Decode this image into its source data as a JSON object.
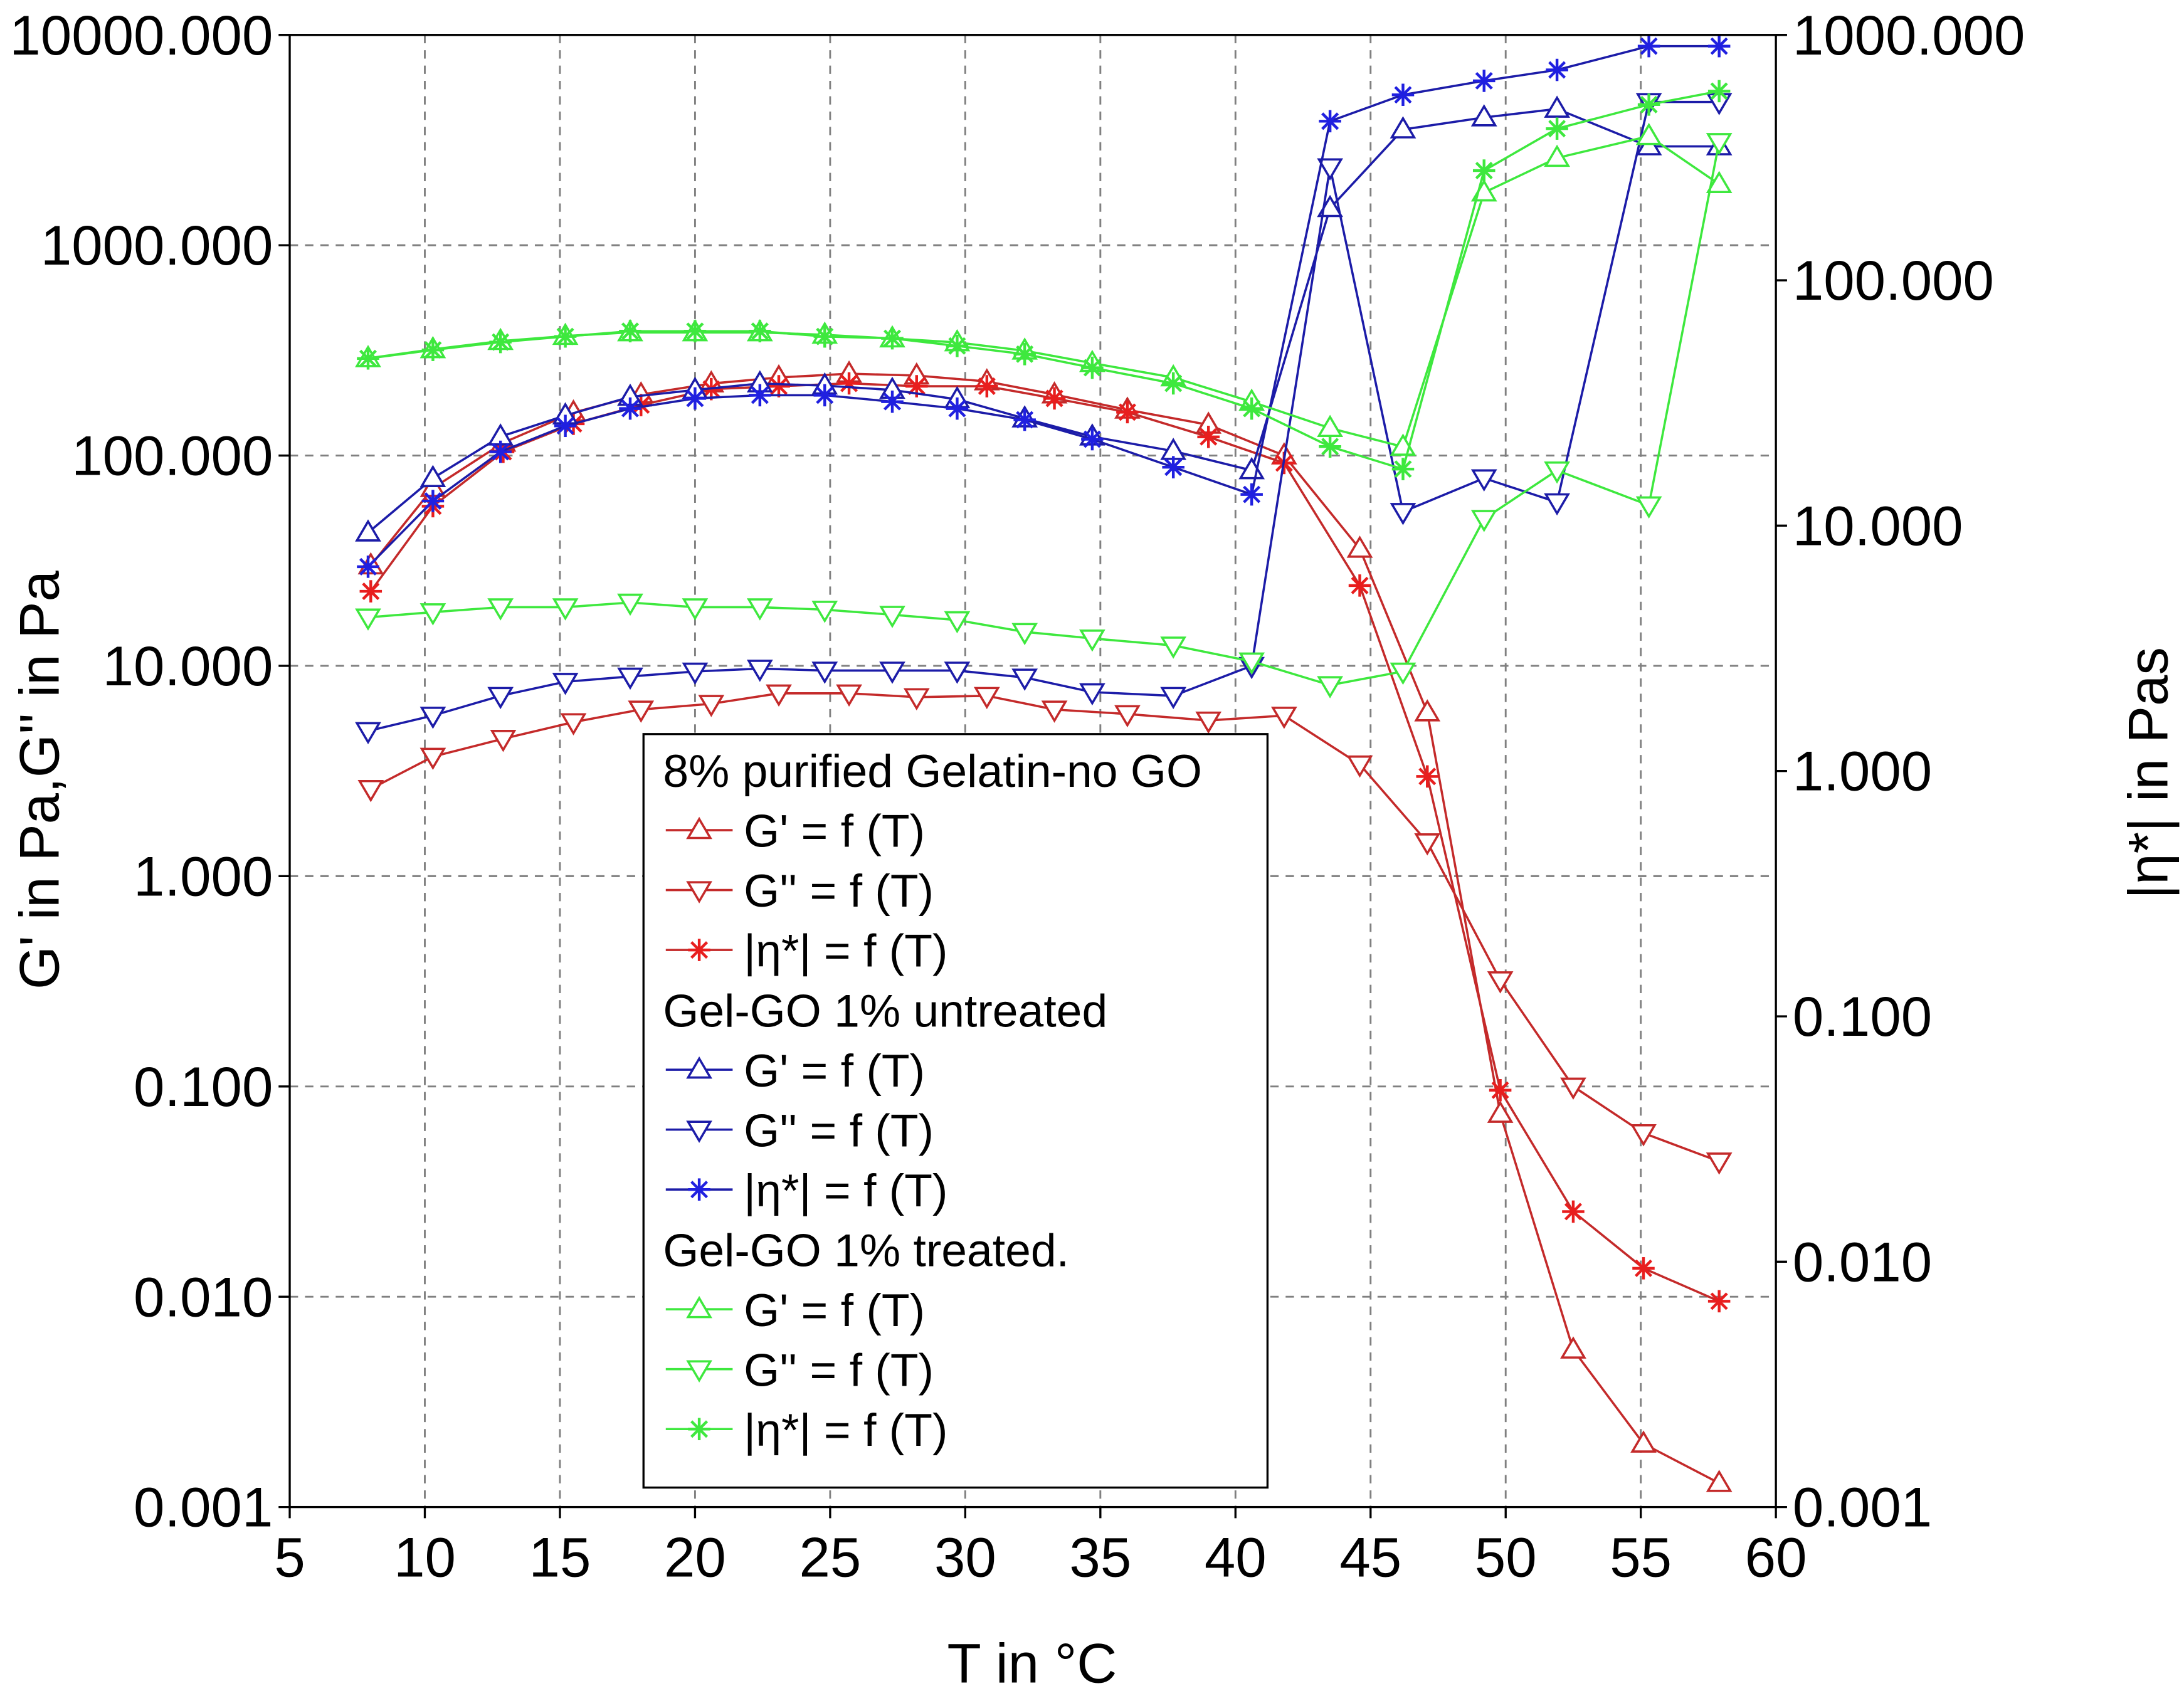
{
  "chart_data": {
    "type": "line",
    "title": "",
    "xlabel": "T in °C",
    "ylabel_left": "G' in Pa,G'' in Pa",
    "ylabel_right": "|η*| in Pas",
    "xlim": [
      5,
      60
    ],
    "ylim_left": [
      0.001,
      10000
    ],
    "ylim_right": [
      0.001,
      1000
    ],
    "yscale_left": "log",
    "yscale_right": "log",
    "grid": true,
    "legend_position": "bottom-center",
    "x_ticks": [
      "5",
      "10",
      "15",
      "20",
      "25",
      "30",
      "35",
      "40",
      "45",
      "50",
      "55",
      "60"
    ],
    "y_ticks_left": [
      "0.001",
      "0.010",
      "0.100",
      "1.000",
      "10.000",
      "100.000",
      "1000.000",
      "10000.000"
    ],
    "y_ticks_right": [
      "0.001",
      "0.010",
      "0.100",
      "1.000",
      "10.000",
      "100.000",
      "1000.000"
    ],
    "groups": [
      {
        "name": "8% purified Gelatin-no GO",
        "color": "#c42a2a",
        "x": [
          8.0,
          10.3,
          12.9,
          15.5,
          18.0,
          20.6,
          23.1,
          25.7,
          28.2,
          30.8,
          33.3,
          36.0,
          39.0,
          41.8,
          44.6,
          47.1,
          49.8,
          52.5,
          55.1,
          57.9
        ],
        "series": [
          {
            "name": "G' = f (T)",
            "marker": "triangle-up",
            "axis": "left",
            "values": [
              30,
              70,
              115,
              160,
              195,
              220,
              235,
              245,
              240,
              225,
              195,
              165,
              140,
              100,
              36,
              6,
              0.074,
              0.0056,
              0.002,
              0.0013
            ]
          },
          {
            "name": "G'' = f (T)",
            "marker": "triangle-down",
            "axis": "left",
            "values": [
              2.6,
              3.7,
              4.5,
              5.4,
              6.2,
              6.6,
              7.4,
              7.4,
              7.1,
              7.2,
              6.2,
              5.9,
              5.5,
              5.8,
              3.4,
              1.45,
              0.32,
              0.1,
              0.06,
              0.044
            ]
          },
          {
            "name": "|η*| = f (T)",
            "marker": "asterisk",
            "axis": "right",
            "values": [
              5.4,
              12,
              20,
              26,
              31,
              36,
              37,
              38,
              37,
              37,
              33,
              29,
              23,
              18,
              5.7,
              0.95,
              0.05,
              0.016,
              0.0094,
              0.0069
            ]
          }
        ]
      },
      {
        "name": "Gel-GO 1% untreated",
        "color": "#1c1ca8",
        "x": [
          7.9,
          10.3,
          12.8,
          15.2,
          17.6,
          20.0,
          22.4,
          24.8,
          27.3,
          29.7,
          32.2,
          34.7,
          37.7,
          40.6,
          43.5,
          46.2,
          49.2,
          51.9,
          55.3,
          57.9
        ],
        "series": [
          {
            "name": "G' = f (T)",
            "marker": "triangle-up",
            "axis": "left",
            "values": [
              43,
              78,
              123,
              155,
              190,
              205,
              220,
              215,
              205,
              185,
              150,
              123,
              105,
              85,
              1500,
              3550,
              4050,
              4450,
              2950,
              2950
            ]
          },
          {
            "name": "G'' = f (T)",
            "marker": "triangle-down",
            "axis": "left",
            "values": [
              4.9,
              5.8,
              7.2,
              8.4,
              8.9,
              9.4,
              9.7,
              9.5,
              9.5,
              9.5,
              8.8,
              7.5,
              7.2,
              10,
              2350,
              54,
              78,
              60,
              4800,
              4800
            ]
          },
          {
            "name": "|η*| = f (T)",
            "marker": "asterisk",
            "axis": "right",
            "values": [
              6.8,
              12.6,
              20,
              25.5,
              30,
              33,
              34,
              34,
              32,
              30,
              27,
              22.5,
              17.3,
              13.4,
              445,
              570,
              650,
              720,
              900,
              900
            ]
          }
        ]
      },
      {
        "name": "Gel-GO 1% treated.",
        "color": "#3ee83e",
        "x": [
          7.9,
          10.3,
          12.8,
          15.2,
          17.6,
          20.0,
          22.4,
          24.8,
          27.3,
          29.7,
          32.2,
          34.7,
          37.7,
          40.6,
          43.5,
          46.2,
          49.2,
          51.9,
          55.3,
          57.9
        ],
        "series": [
          {
            "name": "G' = f (T)",
            "marker": "triangle-up",
            "axis": "left",
            "values": [
              290,
              320,
              350,
              370,
              385,
              385,
              385,
              375,
              360,
              345,
              315,
              275,
              235,
              180,
              135,
              110,
              1780,
              2600,
              3300,
              1950
            ]
          },
          {
            "name": "G'' = f (T)",
            "marker": "triangle-down",
            "axis": "left",
            "values": [
              17,
              18,
              19,
              19,
              20,
              19,
              19,
              18.5,
              17.5,
              16.5,
              14.5,
              13.5,
              12.5,
              10.5,
              8.1,
              9.4,
              50,
              85,
              58,
              3100
            ]
          },
          {
            "name": "|η*| = f (T)",
            "marker": "asterisk",
            "axis": "right",
            "values": [
              48,
              52,
              56,
              59,
              62,
              62,
              62,
              59,
              58,
              54,
              50,
              44,
              38,
              30,
              21,
              17,
              280,
              415,
              520,
              590
            ]
          }
        ]
      }
    ]
  }
}
